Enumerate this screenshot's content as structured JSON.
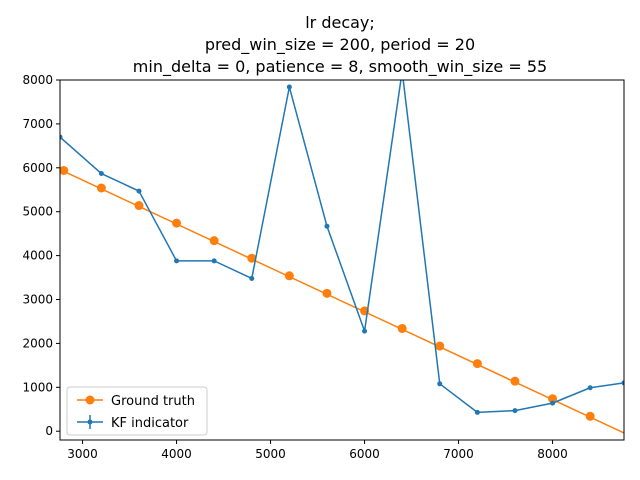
{
  "chart_data": {
    "type": "line",
    "title_lines": [
      "lr decay;",
      "pred_win_size = 200, period = 20",
      "min_delta = 0, patience = 8, smooth_win_size = 55"
    ],
    "xlabel": "",
    "ylabel": "",
    "xlim": [
      2760,
      8760
    ],
    "ylim": [
      -200,
      8000
    ],
    "xticks": [
      3000,
      4000,
      5000,
      6000,
      7000,
      8000
    ],
    "yticks": [
      0,
      1000,
      2000,
      3000,
      4000,
      5000,
      6000,
      7000,
      8000
    ],
    "grid": false,
    "legend_position": "lower-left",
    "colors": {
      "ground_truth": "#ff7f0e",
      "kf_indicator": "#1f77b4"
    },
    "series": [
      {
        "name": "Ground truth",
        "color": "#ff7f0e",
        "line_x": [
          2760,
          8760
        ],
        "line_y": [
          5960,
          -40
        ],
        "marker_x": [
          2800,
          3200,
          3600,
          4000,
          4400,
          4800,
          5200,
          5600,
          6000,
          6400,
          6800,
          7200,
          7600,
          8000,
          8400
        ],
        "marker_y": [
          5940,
          5540,
          5140,
          4740,
          4340,
          3940,
          3540,
          3140,
          2740,
          2340,
          1940,
          1540,
          1140,
          740,
          340
        ]
      },
      {
        "name": "KF indicator",
        "color": "#1f77b4",
        "x": [
          2760,
          3200,
          3600,
          4000,
          4400,
          4800,
          5200,
          5600,
          6000,
          6400,
          6800,
          7200,
          7600,
          8000,
          8400,
          8760
        ],
        "y": [
          6700,
          5870,
          5470,
          3880,
          3880,
          3480,
          7840,
          4670,
          2280,
          8200,
          1080,
          430,
          470,
          640,
          990,
          1100
        ]
      }
    ]
  }
}
